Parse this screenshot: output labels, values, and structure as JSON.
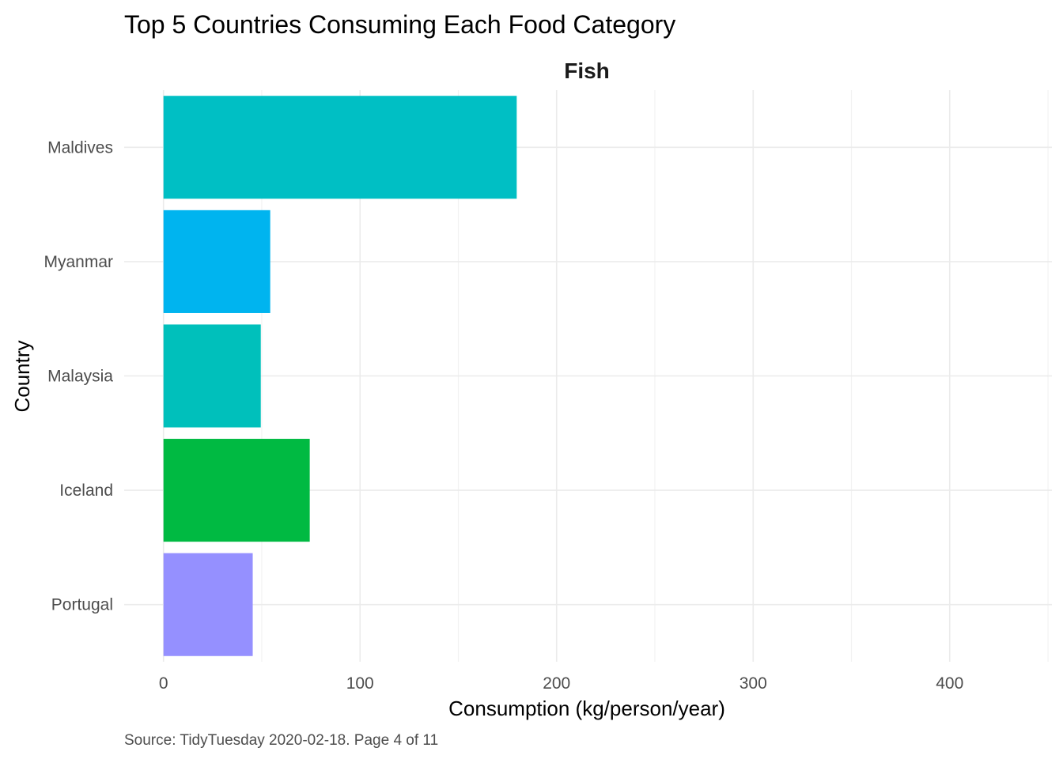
{
  "chart_data": {
    "type": "bar",
    "orientation": "horizontal",
    "title": "Top 5 Countries Consuming Each Food Category",
    "facet": "Fish",
    "xlabel": "Consumption (kg/person/year)",
    "ylabel": "Country",
    "caption": "Source: TidyTuesday 2020-02-18. Page 4 of 11",
    "categories": [
      "Maldives",
      "Myanmar",
      "Malaysia",
      "Iceland",
      "Portugal"
    ],
    "values": [
      179.71,
      54.3,
      49.5,
      74.41,
      45.4
    ],
    "colors": [
      "#00BFC4",
      "#00B4EF",
      "#00C0BB",
      "#00BA42",
      "#9590FF"
    ],
    "xlim": [
      -20,
      452
    ],
    "x_ticks": [
      0,
      100,
      200,
      300,
      400
    ],
    "x_tick_labels": [
      "0",
      "100",
      "200",
      "300",
      "400"
    ],
    "x_minor_ticks": [
      50,
      150,
      250,
      350,
      450
    ],
    "grid": true,
    "legend": "none"
  }
}
